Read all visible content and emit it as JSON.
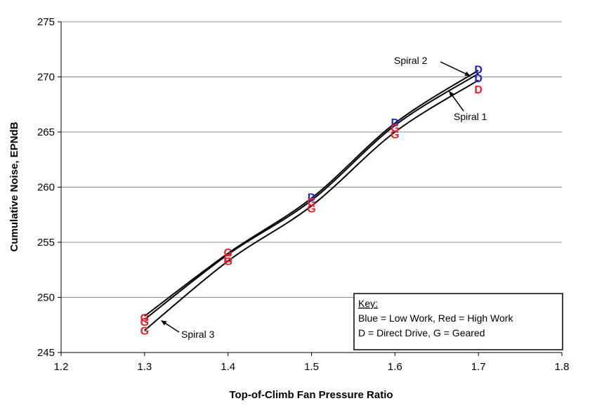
{
  "chart_data": {
    "type": "line",
    "xlabel": "Top-of-Climb Fan Pressure Ratio",
    "ylabel": "Cumulative Noise, EPNdB",
    "xlim": [
      1.2,
      1.8
    ],
    "ylim": [
      245,
      275
    ],
    "xticks": [
      "1.2",
      "1.3",
      "1.4",
      "1.5",
      "1.6",
      "1.7",
      "1.8"
    ],
    "yticks": [
      "245",
      "250",
      "255",
      "260",
      "265",
      "270",
      "275"
    ],
    "grid": "horizontal",
    "series": [
      {
        "name": "Spiral 1",
        "x": [
          1.3,
          1.4,
          1.5,
          1.6,
          1.7
        ],
        "y": [
          247.0,
          253.3,
          258.3,
          265.0,
          269.7
        ]
      },
      {
        "name": "Spiral 2",
        "x": [
          1.3,
          1.4,
          1.5,
          1.6,
          1.7
        ],
        "y": [
          248.0,
          253.9,
          258.8,
          265.6,
          270.3
        ]
      },
      {
        "name": "Spiral 3",
        "x": [
          1.3,
          1.4,
          1.5,
          1.6,
          1.7
        ],
        "y": [
          248.3,
          254.0,
          259.0,
          265.8,
          270.6
        ]
      }
    ],
    "markers": [
      {
        "x": 1.3,
        "y": 248.2,
        "label": "G",
        "color": "#e8202a"
      },
      {
        "x": 1.3,
        "y": 247.8,
        "label": "G",
        "color": "#e8202a"
      },
      {
        "x": 1.3,
        "y": 247.0,
        "label": "G",
        "color": "#e8202a"
      },
      {
        "x": 1.4,
        "y": 254.1,
        "label": "G",
        "color": "#e8202a"
      },
      {
        "x": 1.4,
        "y": 253.6,
        "label": "G",
        "color": "#e8202a"
      },
      {
        "x": 1.4,
        "y": 253.3,
        "label": "G",
        "color": "#e8202a"
      },
      {
        "x": 1.5,
        "y": 259.1,
        "label": "D",
        "color": "#2020d0"
      },
      {
        "x": 1.5,
        "y": 258.7,
        "label": "G",
        "color": "#e8202a"
      },
      {
        "x": 1.5,
        "y": 258.1,
        "label": "G",
        "color": "#e8202a"
      },
      {
        "x": 1.6,
        "y": 265.9,
        "label": "D",
        "color": "#2020d0"
      },
      {
        "x": 1.6,
        "y": 265.4,
        "label": "G",
        "color": "#e8202a"
      },
      {
        "x": 1.6,
        "y": 264.8,
        "label": "G",
        "color": "#e8202a"
      },
      {
        "x": 1.7,
        "y": 270.7,
        "label": "D",
        "color": "#2020d0"
      },
      {
        "x": 1.7,
        "y": 269.9,
        "label": "D",
        "color": "#2020d0"
      },
      {
        "x": 1.7,
        "y": 268.9,
        "label": "D",
        "color": "#e8202a"
      }
    ],
    "annotations": [
      {
        "text": "Spiral 2",
        "target": "Spiral 3",
        "at_x": 1.69,
        "at_y": 270.1
      },
      {
        "text": "Spiral 1",
        "target": "Spiral 1",
        "at_x": 1.665,
        "at_y": 268.7
      },
      {
        "text": "Spiral 3",
        "target": "Spiral 1",
        "at_x": 1.32,
        "at_y": 247.9
      }
    ],
    "key": {
      "title": "Key:",
      "lines": [
        "Blue = Low Work, Red = High Work",
        "D = Direct Drive, G = Geared"
      ]
    }
  }
}
